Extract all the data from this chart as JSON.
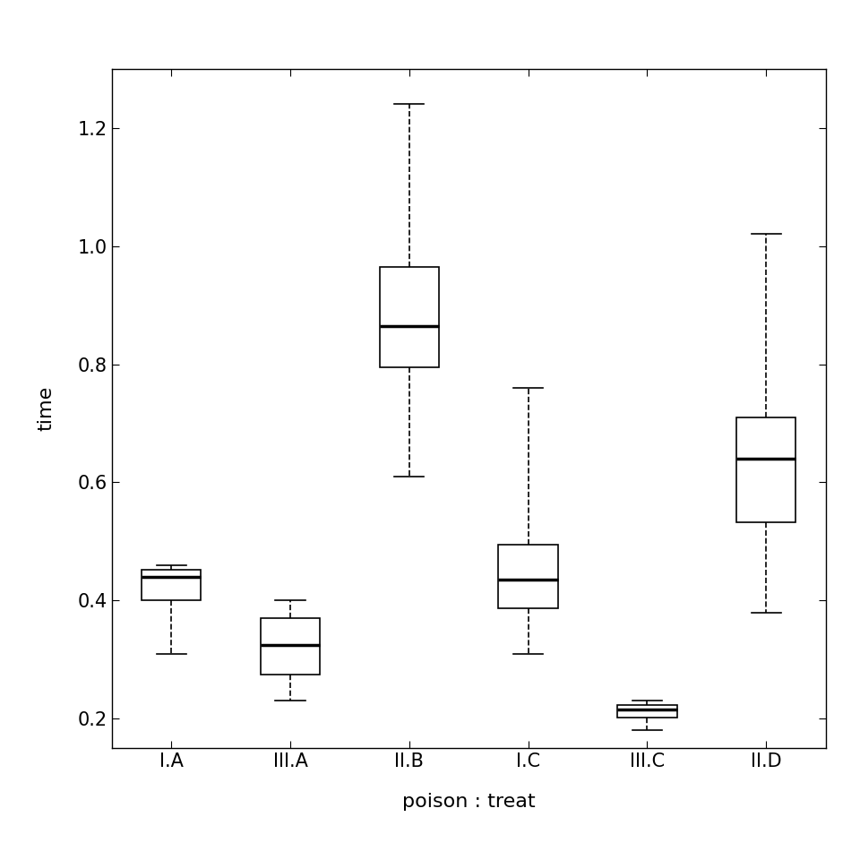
{
  "title": "",
  "xlabel": "poison : treat",
  "ylabel": "time",
  "group_labels": [
    "I.A",
    "III.A",
    "II.B",
    "I.C",
    "III.C",
    "II.D"
  ],
  "group_data": {
    "I.A": [
      0.31,
      0.45,
      0.46,
      0.43
    ],
    "III.A": [
      0.36,
      0.29,
      0.4,
      0.23
    ],
    "II.B": [
      0.82,
      1.1,
      0.88,
      0.72,
      0.92,
      0.61,
      1.24,
      0.85
    ],
    "I.C": [
      0.43,
      0.45,
      0.63,
      0.76,
      0.44,
      0.35,
      0.31,
      0.4
    ],
    "III.C": [
      0.22,
      0.21,
      0.18,
      0.23
    ],
    "II.D": [
      0.45,
      0.71,
      0.66,
      0.62,
      0.56,
      1.02,
      0.71,
      0.38
    ]
  },
  "background_color": "#ffffff",
  "box_color": "#ffffff",
  "median_color": "#000000",
  "whisker_color": "#000000",
  "box_edge_color": "#000000",
  "ylim": [
    0.15,
    1.3
  ],
  "yticks": [
    0.2,
    0.4,
    0.6,
    0.8,
    1.0,
    1.2
  ],
  "figsize": [
    9.6,
    9.6
  ],
  "dpi": 100,
  "ylabel_fontsize": 16,
  "xlabel_fontsize": 16,
  "tick_labelsize": 15
}
